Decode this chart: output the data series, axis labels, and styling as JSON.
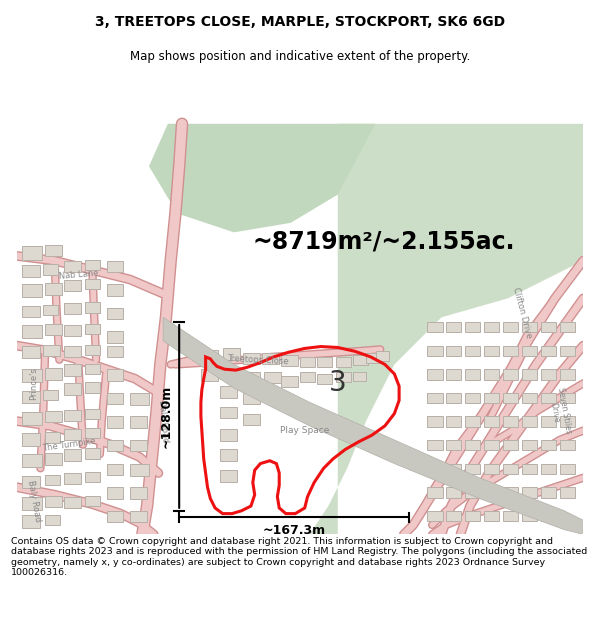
{
  "title": "3, TREETOPS CLOSE, MARPLE, STOCKPORT, SK6 6GD",
  "subtitle": "Map shows position and indicative extent of the property.",
  "footer": "Contains OS data © Crown copyright and database right 2021. This information is subject to Crown copyright and database rights 2023 and is reproduced with the permission of HM Land Registry. The polygons (including the associated geometry, namely x, y co-ordinates) are subject to Crown copyright and database rights 2023 Ordnance Survey 100026316.",
  "area_label": "~8719m²/~2.155ac.",
  "width_label": "~167.3m",
  "height_label": "~128.0m",
  "property_number": "3",
  "bg_color": "#f2ede8",
  "green1_color": "#cddec8",
  "green2_color": "#c2d8be",
  "road_fill": "#f0c8c8",
  "road_edge": "#d09090",
  "building_fill": "#ddd8d0",
  "building_edge": "#b8b0a8",
  "red_line": "#ee1111",
  "red_fill": "#ee111108",
  "black": "#000000",
  "gray_label": "#888888",
  "title_fs": 10,
  "subtitle_fs": 8.5,
  "footer_fs": 6.8,
  "area_fs": 17,
  "meas_fs": 9,
  "num_fs": 20,
  "label_fs": 6
}
